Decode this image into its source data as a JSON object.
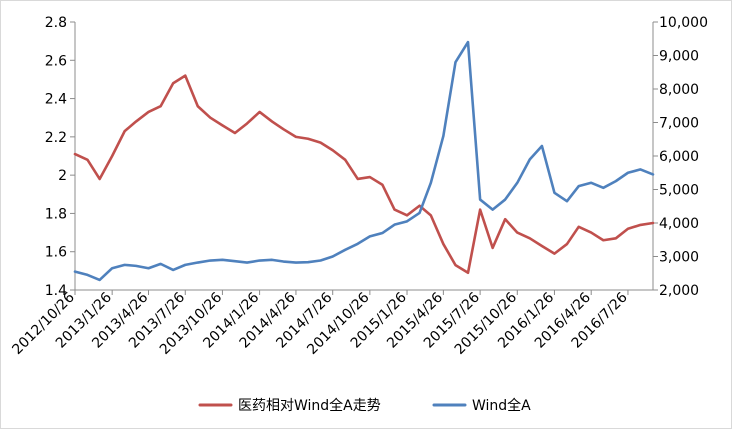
{
  "chart_data": {
    "type": "line",
    "title": "",
    "xlabel": "",
    "ylabel_left": "",
    "ylabel_right": "",
    "grid": false,
    "legend_position": "bottom",
    "left_axis": {
      "ylim": [
        1.4,
        2.8
      ],
      "ticks": [
        "1.4",
        "1.6",
        "1.8",
        "2",
        "2.2",
        "2.4",
        "2.6",
        "2.8"
      ]
    },
    "right_axis": {
      "ylim": [
        2000,
        10000
      ],
      "ticks": [
        "2,000",
        "3,000",
        "4,000",
        "5,000",
        "6,000",
        "7,000",
        "8,000",
        "9,000",
        "10,000"
      ]
    },
    "x_tick_labels": [
      "2012/10/26",
      "2013/1/26",
      "2013/4/26",
      "2013/7/26",
      "2013/10/26",
      "2014/1/26",
      "2014/4/26",
      "2014/7/26",
      "2014/10/26",
      "2015/1/26",
      "2015/4/26",
      "2015/7/26",
      "2015/10/26",
      "2016/1/26",
      "2016/4/26",
      "2016/7/26"
    ],
    "x": [
      "2012/10/26",
      "2012/11/26",
      "2012/12/26",
      "2013/1/26",
      "2013/2/26",
      "2013/3/26",
      "2013/4/26",
      "2013/5/26",
      "2013/6/26",
      "2013/7/26",
      "2013/8/26",
      "2013/9/26",
      "2013/10/26",
      "2013/11/26",
      "2013/12/26",
      "2014/1/26",
      "2014/2/26",
      "2014/3/26",
      "2014/4/26",
      "2014/5/26",
      "2014/6/26",
      "2014/7/26",
      "2014/8/26",
      "2014/9/26",
      "2014/10/26",
      "2014/11/26",
      "2014/12/26",
      "2015/1/26",
      "2015/2/26",
      "2015/3/26",
      "2015/4/26",
      "2015/5/26",
      "2015/6/26",
      "2015/7/26",
      "2015/8/26",
      "2015/9/26",
      "2015/10/26",
      "2015/11/26",
      "2015/12/26",
      "2016/1/26",
      "2016/2/26",
      "2016/3/26",
      "2016/4/26",
      "2016/5/26",
      "2016/6/26",
      "2016/7/26",
      "2016/8/26",
      "2016/9/26"
    ],
    "series": [
      {
        "name": "医药相对Wind全A走势",
        "axis": "left",
        "color": "#c0504d",
        "values": [
          2.11,
          2.08,
          1.98,
          2.1,
          2.23,
          2.28,
          2.33,
          2.36,
          2.48,
          2.52,
          2.36,
          2.3,
          2.26,
          2.22,
          2.27,
          2.33,
          2.28,
          2.24,
          2.2,
          2.19,
          2.17,
          2.13,
          2.08,
          1.98,
          1.99,
          1.95,
          1.82,
          1.79,
          1.84,
          1.79,
          1.64,
          1.53,
          1.49,
          1.82,
          1.62,
          1.77,
          1.7,
          1.67,
          1.63,
          1.59,
          1.64,
          1.73,
          1.7,
          1.66,
          1.67,
          1.72,
          1.74,
          1.75
        ]
      },
      {
        "name": "Wind全A",
        "axis": "right",
        "color": "#4f81bd",
        "values": [
          2550,
          2450,
          2300,
          2650,
          2750,
          2720,
          2650,
          2780,
          2600,
          2750,
          2820,
          2880,
          2900,
          2860,
          2820,
          2880,
          2900,
          2850,
          2820,
          2830,
          2880,
          3000,
          3200,
          3380,
          3600,
          3700,
          3950,
          4050,
          4300,
          5200,
          6600,
          8800,
          9400,
          4700,
          4400,
          4700,
          5200,
          5900,
          6300,
          4900,
          4650,
          5100,
          5200,
          5050,
          5250,
          5500,
          5600,
          5450
        ]
      }
    ]
  }
}
